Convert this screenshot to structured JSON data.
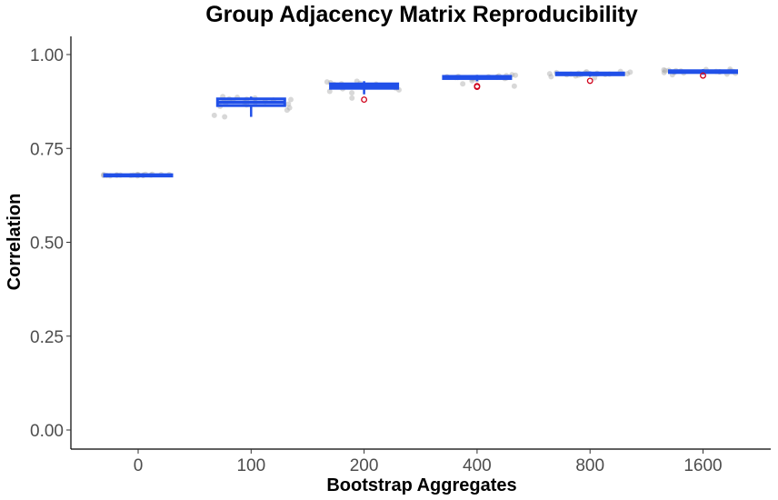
{
  "chart_data": {
    "type": "box",
    "title": "Group Adjacency Matrix Reproducibility",
    "xlabel": "Bootstrap Aggregates",
    "ylabel": "Correlation",
    "categories": [
      "0",
      "100",
      "200",
      "400",
      "800",
      "1600"
    ],
    "ylim": [
      0,
      1.05
    ],
    "yticks": [
      0.0,
      0.25,
      0.5,
      0.75,
      1.0
    ],
    "ytick_labels": [
      "0.00",
      "0.25",
      "0.50",
      "0.75",
      "1.00"
    ],
    "grid": false,
    "legend": "none",
    "colors": {
      "box": "#2150e8",
      "points": "#a9a9a9",
      "outlier": "#d0021b",
      "axis": "#000000"
    },
    "boxes": [
      {
        "category": "0",
        "q1": 0.678,
        "median": 0.679,
        "q3": 0.68,
        "whisker_low": 0.677,
        "whisker_high": 0.681,
        "outliers": []
      },
      {
        "category": "100",
        "q1": 0.864,
        "median": 0.873,
        "q3": 0.882,
        "whisker_low": 0.834,
        "whisker_high": 0.888,
        "outliers": []
      },
      {
        "category": "200",
        "q1": 0.91,
        "median": 0.916,
        "q3": 0.922,
        "whisker_low": 0.894,
        "whisker_high": 0.929,
        "outliers": [
          0.88
        ]
      },
      {
        "category": "400",
        "q1": 0.936,
        "median": 0.939,
        "q3": 0.942,
        "whisker_low": 0.929,
        "whisker_high": 0.946,
        "outliers": [
          0.916,
          0.914
        ]
      },
      {
        "category": "800",
        "q1": 0.946,
        "median": 0.948,
        "q3": 0.951,
        "whisker_low": 0.941,
        "whisker_high": 0.955,
        "outliers": [
          0.93
        ]
      },
      {
        "category": "1600",
        "q1": 0.952,
        "median": 0.955,
        "q3": 0.957,
        "whisker_low": 0.946,
        "whisker_high": 0.961,
        "outliers": [
          0.944
        ]
      }
    ],
    "points": [
      {
        "category": "0",
        "values": [
          0.677,
          0.678,
          0.678,
          0.679,
          0.679,
          0.679,
          0.68,
          0.68,
          0.681,
          0.678,
          0.679,
          0.68,
          0.679,
          0.678,
          0.68,
          0.679,
          0.681,
          0.677,
          0.679,
          0.68
        ]
      },
      {
        "category": "100",
        "values": [
          0.834,
          0.838,
          0.852,
          0.858,
          0.862,
          0.866,
          0.868,
          0.87,
          0.872,
          0.873,
          0.875,
          0.876,
          0.878,
          0.88,
          0.881,
          0.882,
          0.884,
          0.886,
          0.888,
          0.879
        ]
      },
      {
        "category": "200",
        "values": [
          0.884,
          0.898,
          0.902,
          0.906,
          0.909,
          0.911,
          0.913,
          0.915,
          0.916,
          0.917,
          0.918,
          0.919,
          0.92,
          0.922,
          0.923,
          0.925,
          0.927,
          0.929,
          0.914,
          0.921
        ]
      },
      {
        "category": "400",
        "values": [
          0.916,
          0.922,
          0.93,
          0.933,
          0.935,
          0.936,
          0.937,
          0.938,
          0.939,
          0.939,
          0.94,
          0.941,
          0.942,
          0.943,
          0.944,
          0.945,
          0.946,
          0.938,
          0.94,
          0.941
        ]
      },
      {
        "category": "800",
        "values": [
          0.938,
          0.941,
          0.943,
          0.945,
          0.946,
          0.947,
          0.947,
          0.948,
          0.948,
          0.949,
          0.949,
          0.95,
          0.95,
          0.951,
          0.952,
          0.953,
          0.954,
          0.955,
          0.948,
          0.95
        ]
      },
      {
        "category": "1600",
        "values": [
          0.946,
          0.948,
          0.95,
          0.951,
          0.952,
          0.953,
          0.954,
          0.954,
          0.955,
          0.955,
          0.956,
          0.956,
          0.957,
          0.957,
          0.958,
          0.959,
          0.96,
          0.961,
          0.955,
          0.953
        ]
      }
    ]
  }
}
